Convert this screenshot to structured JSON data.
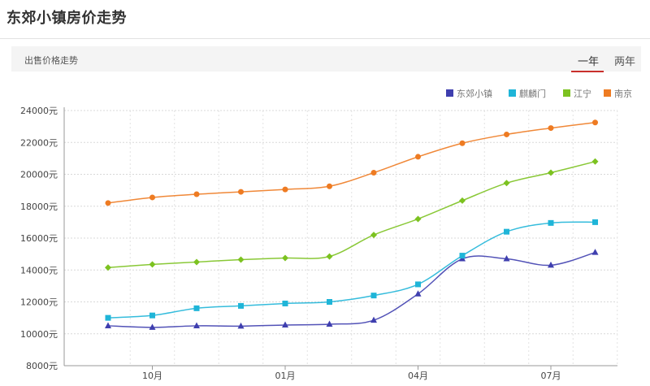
{
  "page": {
    "title": "东郊小镇房价走势"
  },
  "toolbar": {
    "label": "出售价格走势",
    "tabs": [
      {
        "label": "一年",
        "active": true
      },
      {
        "label": "两年",
        "active": false
      }
    ]
  },
  "chart_data": {
    "type": "line",
    "title": "",
    "xlabel": "",
    "ylabel": "",
    "ylim": [
      8000,
      24000
    ],
    "y_ticks": [
      8000,
      10000,
      12000,
      14000,
      16000,
      18000,
      20000,
      22000,
      24000
    ],
    "y_tick_suffix": "元",
    "x_tick_labels": [
      {
        "index": 1,
        "label": "10月"
      },
      {
        "index": 4,
        "label": "01月"
      },
      {
        "index": 7,
        "label": "04月"
      },
      {
        "index": 10,
        "label": "07月"
      }
    ],
    "point_count": 12,
    "grid": true,
    "legend_position": "top-right",
    "series": [
      {
        "name": "东郊小镇",
        "color": "#3f3faf",
        "marker": "triangle",
        "values": [
          10500,
          10400,
          10500,
          10480,
          10550,
          10600,
          10850,
          12500,
          14700,
          14700,
          14300,
          15100
        ]
      },
      {
        "name": "麒麟门",
        "color": "#1fb5d8",
        "marker": "square",
        "values": [
          11000,
          11150,
          11600,
          11750,
          11900,
          12000,
          12400,
          13100,
          14900,
          16400,
          16950,
          17000
        ]
      },
      {
        "name": "江宁",
        "color": "#7cc220",
        "marker": "diamond",
        "values": [
          14150,
          14350,
          14500,
          14650,
          14750,
          14850,
          16200,
          17200,
          18350,
          19450,
          20100,
          20800
        ]
      },
      {
        "name": "南京",
        "color": "#ee7b22",
        "marker": "circle",
        "values": [
          18200,
          18550,
          18750,
          18900,
          19050,
          19250,
          20100,
          21100,
          21950,
          22500,
          22900,
          23250
        ]
      }
    ]
  }
}
